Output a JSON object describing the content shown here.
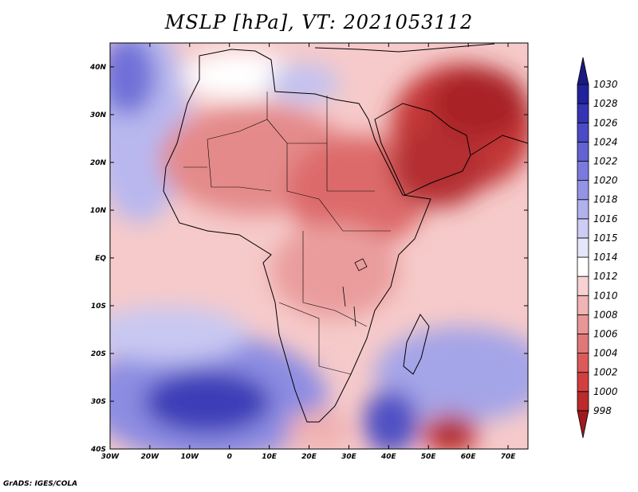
{
  "title": "MSLP [hPa], VT: 2021053112",
  "credit": "GrADS: IGES/COLA",
  "map": {
    "lon_range": [
      -30,
      75
    ],
    "lat_range": [
      -40,
      45
    ],
    "lon_ticks": [
      {
        "value": -30,
        "label": "30W"
      },
      {
        "value": -20,
        "label": "20W"
      },
      {
        "value": -10,
        "label": "10W"
      },
      {
        "value": 0,
        "label": "0"
      },
      {
        "value": 10,
        "label": "10E"
      },
      {
        "value": 20,
        "label": "20E"
      },
      {
        "value": 30,
        "label": "30E"
      },
      {
        "value": 40,
        "label": "40E"
      },
      {
        "value": 50,
        "label": "50E"
      },
      {
        "value": 60,
        "label": "60E"
      },
      {
        "value": 70,
        "label": "70E"
      }
    ],
    "lat_ticks": [
      {
        "value": 40,
        "label": "40N"
      },
      {
        "value": 30,
        "label": "30N"
      },
      {
        "value": 20,
        "label": "20N"
      },
      {
        "value": 10,
        "label": "10N"
      },
      {
        "value": 0,
        "label": "EQ"
      },
      {
        "value": -10,
        "label": "10S"
      },
      {
        "value": -20,
        "label": "20S"
      },
      {
        "value": -30,
        "label": "30S"
      },
      {
        "value": -40,
        "label": "40S"
      }
    ]
  },
  "colorbar": {
    "levels": [
      "998",
      "1000",
      "1002",
      "1004",
      "1006",
      "1008",
      "1010",
      "1012",
      "1014",
      "1015",
      "1016",
      "1018",
      "1020",
      "1022",
      "1024",
      "1026",
      "1028",
      "1030"
    ],
    "colors": [
      "#9e1a1e",
      "#bd2a2c",
      "#d23f3f",
      "#dc5a5a",
      "#e07878",
      "#e89696",
      "#f0b4b4",
      "#f8d2d2",
      "#ffffff",
      "#e6e6fb",
      "#ccccf4",
      "#b1b1ee",
      "#9494e6",
      "#7a7adc",
      "#6262d3",
      "#4b4bc6",
      "#3535b4",
      "#22229c",
      "#1a1a80"
    ]
  }
}
